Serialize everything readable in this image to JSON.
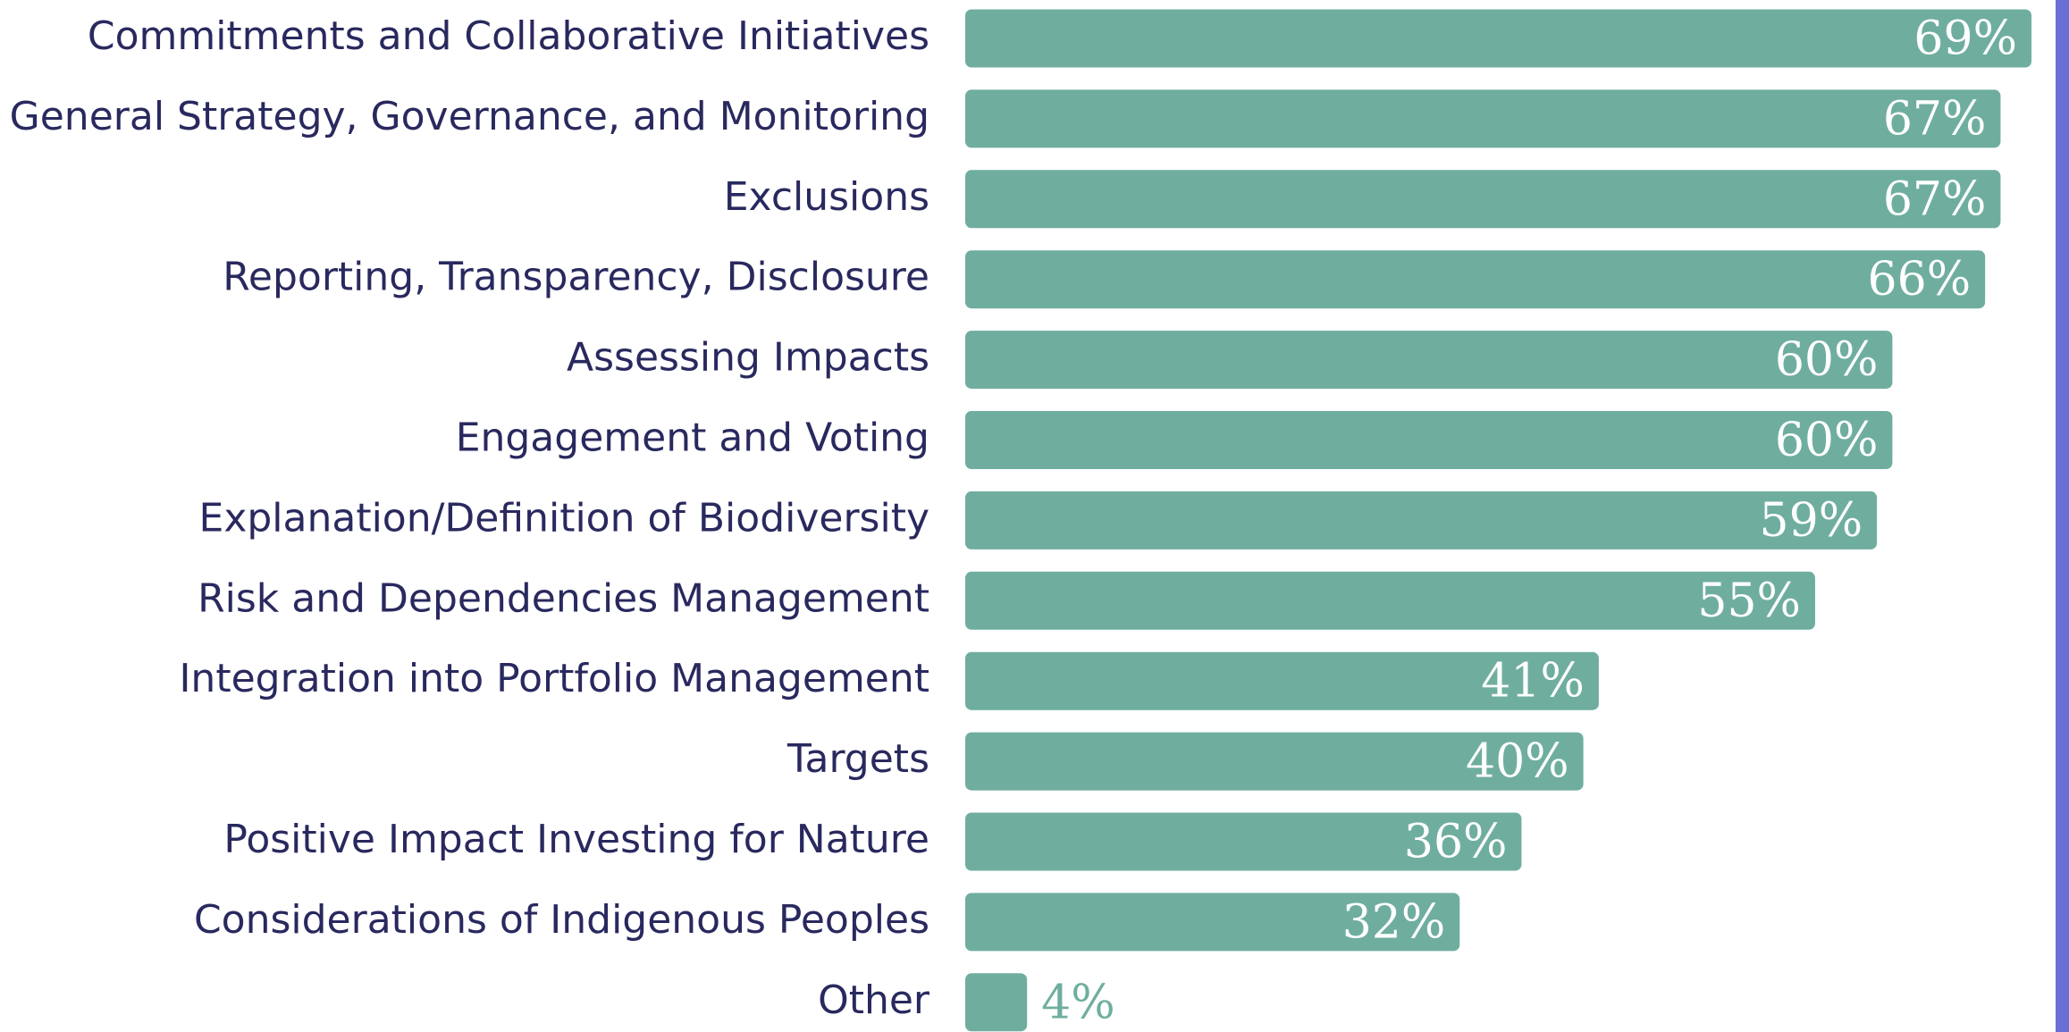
{
  "chart_data": {
    "type": "bar",
    "orientation": "horizontal",
    "categories": [
      "Commitments and Collaborative Initiatives",
      "General Strategy, Governance, and Monitoring",
      "Exclusions",
      "Reporting, Transparency, Disclosure",
      "Assessing Impacts",
      "Engagement and Voting",
      "Explanation/Definition of Biodiversity",
      "Risk and Dependencies Management",
      "Integration into Portfolio Management",
      "Targets",
      "Positive Impact Investing for Nature",
      "Considerations of Indigenous Peoples",
      "Other"
    ],
    "values": [
      69,
      67,
      67,
      66,
      60,
      60,
      59,
      55,
      41,
      40,
      36,
      32,
      4
    ],
    "value_labels": [
      "69%",
      "67%",
      "67%",
      "66%",
      "60%",
      "60%",
      "59%",
      "55%",
      "41%",
      "40%",
      "36%",
      "32%",
      "4%"
    ],
    "color": "#6fae9f"
  }
}
